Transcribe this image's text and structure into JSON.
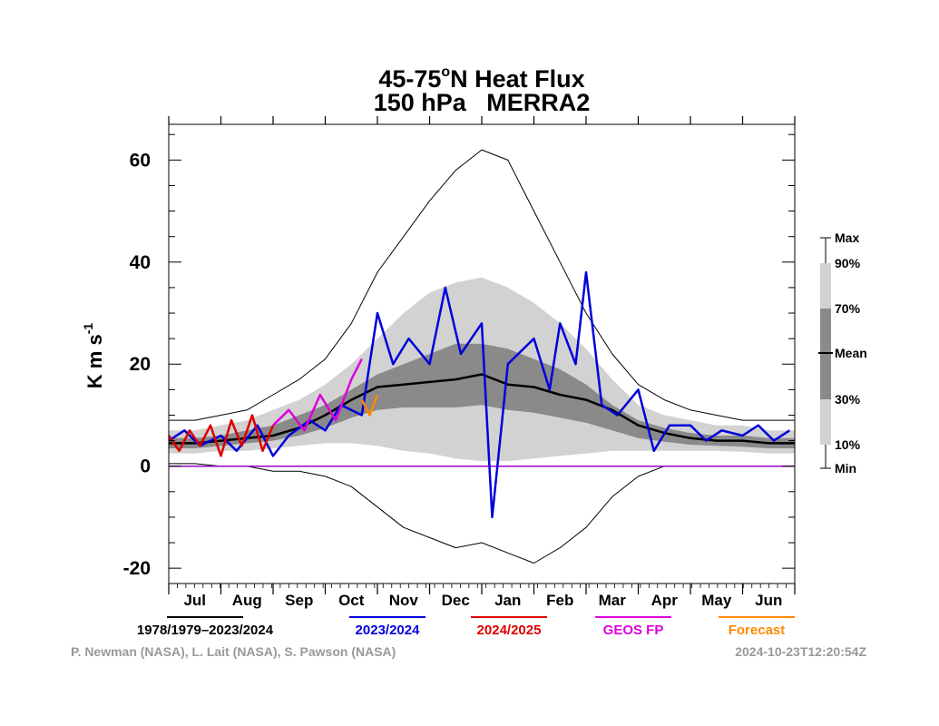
{
  "chart_data": {
    "type": "line",
    "title": "45-75°N Heat Flux",
    "title_line1": "45-75",
    "title_degree": "o",
    "title_rest": "N Heat Flux",
    "subtitle": "150 hPa   MERRA2",
    "ylabel_main": "K m s",
    "ylabel_exp": "-1",
    "ylim": [
      -23,
      67
    ],
    "yticks": [
      -20,
      0,
      20,
      40,
      60
    ],
    "ytick_labels": [
      "-20",
      "0",
      "20",
      "40",
      "60"
    ],
    "months": [
      "Jul",
      "Aug",
      "Sep",
      "Oct",
      "Nov",
      "Dec",
      "Jan",
      "Feb",
      "Mar",
      "Apr",
      "May",
      "Jun"
    ],
    "x_unit": "month index (0 = 1 Jul, 12 = 30 Jun)",
    "climatology": {
      "x": [
        0,
        0.5,
        1,
        1.5,
        2,
        2.5,
        3,
        3.5,
        4,
        4.5,
        5,
        5.5,
        6,
        6.5,
        7,
        7.5,
        8,
        8.5,
        9,
        9.5,
        10,
        10.5,
        11,
        11.5,
        12
      ],
      "max": [
        9,
        9,
        10,
        11,
        14,
        17,
        21,
        28,
        38,
        45,
        52,
        58,
        62,
        60,
        50,
        40,
        30,
        22,
        16,
        13,
        11,
        10,
        9,
        9,
        9
      ],
      "p90": [
        7,
        7,
        8,
        9,
        11,
        13,
        16,
        20,
        25,
        30,
        34,
        36,
        37,
        35,
        32,
        28,
        23,
        17,
        12,
        10,
        9,
        8,
        8,
        7,
        7
      ],
      "p70": [
        5.5,
        5.5,
        6,
        7,
        8,
        10,
        12,
        15,
        18,
        20,
        22,
        24,
        24,
        23,
        21,
        19,
        16,
        12,
        9,
        7.5,
        6.5,
        6,
        6,
        5.5,
        5.5
      ],
      "mean": [
        4.5,
        4.5,
        5,
        5.5,
        6,
        7.5,
        10,
        13,
        15.5,
        16,
        16.5,
        17,
        18,
        16,
        15.5,
        14,
        13,
        11,
        8,
        6.5,
        5.5,
        5,
        5,
        4.5,
        4.5
      ],
      "p30": [
        3.5,
        3.5,
        4,
        4.5,
        5,
        6,
        7.5,
        9.5,
        11,
        11.5,
        11.5,
        11.5,
        12,
        11,
        10.5,
        9.5,
        8.5,
        7,
        5.5,
        4.8,
        4.2,
        4,
        3.8,
        3.5,
        3.5
      ],
      "p10": [
        2.5,
        2.5,
        3,
        3,
        3.5,
        4,
        4.5,
        4.5,
        4,
        3,
        2.5,
        1.5,
        1,
        1,
        1.5,
        2,
        2.5,
        3,
        3,
        3,
        3,
        3,
        2.8,
        2.5,
        2.5
      ],
      "min": [
        0.5,
        0.5,
        0,
        0,
        -1,
        -1,
        -2,
        -4,
        -8,
        -12,
        -14,
        -16,
        -15,
        -17,
        -19,
        -16,
        -12,
        -6,
        -2,
        0,
        0,
        0,
        0,
        0,
        0
      ]
    },
    "series": [
      {
        "name": "2023/2024",
        "color": "#0000dd",
        "x": [
          0,
          0.3,
          0.6,
          1,
          1.3,
          1.7,
          2,
          2.3,
          2.7,
          3,
          3.3,
          3.7,
          4,
          4.3,
          4.6,
          5,
          5.3,
          5.6,
          6,
          6.2,
          6.5,
          7,
          7.3,
          7.5,
          7.8,
          8,
          8.3,
          8.6,
          9,
          9.3,
          9.6,
          10,
          10.3,
          10.6,
          11,
          11.3,
          11.6,
          11.9
        ],
        "values": [
          5,
          7,
          4,
          6,
          3,
          8,
          2,
          6,
          9,
          7,
          12,
          10,
          30,
          20,
          25,
          20,
          35,
          22,
          28,
          -10,
          20,
          25,
          15,
          28,
          20,
          38,
          12,
          10,
          15,
          3,
          8,
          8,
          5,
          7,
          6,
          8,
          5,
          7
        ]
      },
      {
        "name": "2024/2025",
        "color": "#dd0000",
        "x": [
          0,
          0.2,
          0.4,
          0.6,
          0.8,
          1,
          1.2,
          1.4,
          1.6,
          1.8,
          2
        ],
        "values": [
          6,
          3,
          7,
          4,
          8,
          2,
          9,
          4,
          10,
          3,
          8
        ]
      },
      {
        "name": "GEOS FP",
        "color": "#dd00dd",
        "x": [
          2,
          2.3,
          2.6,
          2.9,
          3.2,
          3.5,
          3.7
        ],
        "values": [
          8,
          11,
          7,
          14,
          9,
          17,
          21
        ]
      },
      {
        "name": "Forecast",
        "color": "#ff8800",
        "x": [
          3.7,
          3.85,
          4
        ],
        "values": [
          13,
          10,
          14
        ]
      }
    ],
    "legend": [
      {
        "label": "1978/1979–2023/2024",
        "color": "#000000"
      },
      {
        "label": "2023/2024",
        "color": "#0000dd"
      },
      {
        "label": "2024/2025",
        "color": "#dd0000"
      },
      {
        "label": "GEOS FP",
        "color": "#dd00dd"
      },
      {
        "label": "Forecast",
        "color": "#ff8800"
      }
    ],
    "band_key": [
      "Max",
      "90%",
      "70%",
      "Mean",
      "30%",
      "10%",
      "Min"
    ],
    "colors": {
      "band_outer": "#d2d2d2",
      "band_mid": "#b4b4b4",
      "band_inner": "#8a8a8a",
      "zero_line": "#9900cc"
    }
  },
  "credits": {
    "authors": "P. Newman (NASA), L. Lait (NASA), S. Pawson (NASA)",
    "timestamp": "2024-10-23T12:20:54Z"
  }
}
